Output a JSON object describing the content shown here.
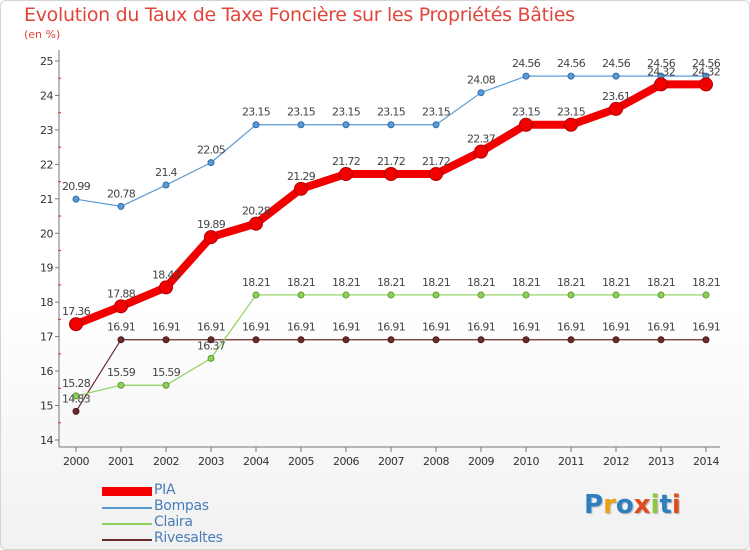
{
  "title": "Evolution du Taux de Taxe Foncière sur les Propriétés Bâties",
  "subtitle": "(en %)",
  "logo": {
    "text": "Proxiti",
    "letters": [
      "P",
      "r",
      "o",
      "x",
      "i",
      "t",
      "i"
    ],
    "colors": [
      "#2e7fc0",
      "#e8a21a",
      "#2e7fc0",
      "#e04c1f",
      "#8dc63f",
      "#2e7fc0",
      "#e04c1f"
    ]
  },
  "chart_data": {
    "type": "line",
    "x": [
      "2000",
      "2001",
      "2002",
      "2003",
      "2004",
      "2005",
      "2006",
      "2007",
      "2008",
      "2009",
      "2010",
      "2011",
      "2012",
      "2013",
      "2014"
    ],
    "ylim": [
      14,
      25
    ],
    "yticks": [
      "14",
      "15",
      "16",
      "17",
      "18",
      "19",
      "20",
      "21",
      "22",
      "23",
      "24",
      "25"
    ],
    "grid": false,
    "legend_placement": "bottom-left",
    "series": [
      {
        "name": "Rivesaltes",
        "color": "#6b2b2b",
        "values": [
          14.83,
          16.91,
          16.91,
          16.91,
          16.91,
          16.91,
          16.91,
          16.91,
          16.91,
          16.91,
          16.91,
          16.91,
          16.91,
          16.91,
          16.91
        ],
        "labels": [
          "14.83",
          "16.91",
          "16.91",
          "16.91",
          "16.91",
          "16.91",
          "16.91",
          "16.91",
          "16.91",
          "16.91",
          "16.91",
          "16.91",
          "16.91",
          "16.91",
          "16.91"
        ]
      },
      {
        "name": "Claira",
        "color": "#8ed05a",
        "values": [
          15.28,
          15.59,
          15.59,
          16.37,
          18.21,
          18.21,
          18.21,
          18.21,
          18.21,
          18.21,
          18.21,
          18.21,
          18.21,
          18.21,
          18.21
        ],
        "labels": [
          "15.28",
          "15.59",
          "15.59",
          "16.37",
          "18.21",
          "18.21",
          "18.21",
          "18.21",
          "18.21",
          "18.21",
          "18.21",
          "18.21",
          "18.21",
          "18.21",
          "18.21"
        ]
      },
      {
        "name": "Bompas",
        "color": "#5b9bd5",
        "values": [
          20.99,
          20.78,
          21.4,
          22.05,
          23.15,
          23.15,
          23.15,
          23.15,
          23.15,
          24.08,
          24.56,
          24.56,
          24.56,
          24.56,
          24.56
        ],
        "labels": [
          "20.99",
          "20.78",
          "21.4",
          "22.05",
          "23.15",
          "23.15",
          "23.15",
          "23.15",
          "23.15",
          "24.08",
          "24.56",
          "24.56",
          "24.56",
          "24.56",
          "24.56"
        ]
      },
      {
        "name": "PIA",
        "color": "#f20000",
        "values": [
          17.36,
          17.88,
          18.43,
          19.89,
          20.28,
          21.29,
          21.72,
          21.72,
          21.72,
          22.37,
          23.15,
          23.15,
          23.61,
          24.32,
          24.32
        ],
        "labels": [
          "17.36",
          "17.88",
          "18.43",
          "19.89",
          "20.28",
          "21.29",
          "21.72",
          "21.72",
          "21.72",
          "22.37",
          "23.15",
          "23.15",
          "23.61",
          "24.32",
          "24.32"
        ]
      }
    ],
    "legend": [
      "PIA",
      "Bompas",
      "Claira",
      "Rivesaltes"
    ]
  }
}
